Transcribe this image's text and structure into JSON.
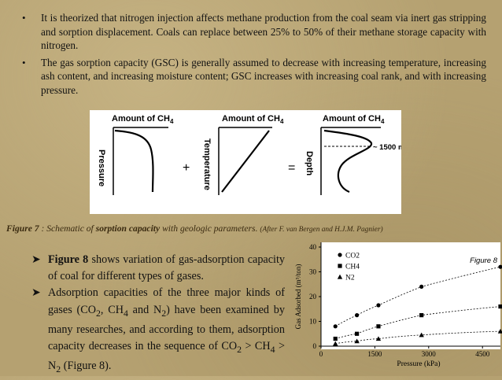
{
  "bullets": [
    "It is theorized that nitrogen injection affects methane production from the coal seam via inert gas stripping and sorption displacement. Coals can replace between 25% to 50% of their methane storage capacity with nitrogen.",
    "The gas sorption capacity (GSC) is generally assumed to decrease with increasing temperature, increasing ash content, and increasing moisture content; GSC increases with increasing coal rank, and with increasing pressure."
  ],
  "figure7": {
    "panel_titles": [
      "Amount of CH",
      "Amount of CH",
      "Amount of CH"
    ],
    "panel_title_sub": "4",
    "axis_labels": [
      "Pressure",
      "Temperature",
      "Depth"
    ],
    "operators": [
      "+",
      "="
    ],
    "depth_annotation": "~ 1500 m",
    "caption_fig": "Figure 7",
    "caption_text": " : Schematic of ",
    "caption_bold": "sorption capacity",
    "caption_rest": " with geologic parameters. ",
    "caption_source": "(After F. van Bergen and H.J.M. Pagnier)"
  },
  "bottom_bullets": {
    "item1_bold": "Figure 8",
    "item1_rest": " shows variation of gas-adsorption capacity of coal for different types of gases.",
    "item2_a": "Adsorption capacities of the three major kinds of gases (CO",
    "item2_b": ", CH",
    "item2_c": " and N",
    "item2_d": ") have been examined by many researches, and according to them, adsorption capacity decreases in the sequence of CO",
    "item2_e": " > CH",
    "item2_f": " > N",
    "item2_g": " (Figure 8).",
    "sub2": "2",
    "sub4": "4"
  },
  "figure8": {
    "tag": "Figure 8",
    "chart_data": {
      "type": "scatter",
      "xlabel": "Pressure (kPa)",
      "ylabel": "Gas Adsorbed (m³/ton)",
      "xlim": [
        0,
        5000
      ],
      "ylim": [
        0,
        40
      ],
      "xticks": [
        "0",
        "1500",
        "3000",
        "4500"
      ],
      "yticks": [
        "0",
        "10",
        "20",
        "30",
        "40"
      ],
      "legend": [
        "CO2",
        "CH4",
        "N2"
      ],
      "series": [
        {
          "name": "CO2",
          "marker": "circle",
          "x": [
            400,
            1000,
            1600,
            2800,
            5000
          ],
          "y": [
            8,
            12.5,
            16.5,
            24,
            32
          ]
        },
        {
          "name": "CH4",
          "marker": "square",
          "x": [
            400,
            1000,
            1600,
            2800,
            5000
          ],
          "y": [
            3,
            5,
            8,
            12.5,
            16
          ]
        },
        {
          "name": "N2",
          "marker": "triangle",
          "x": [
            400,
            1000,
            1600,
            2800,
            5000
          ],
          "y": [
            1,
            2,
            3,
            4.5,
            6
          ]
        }
      ]
    }
  }
}
